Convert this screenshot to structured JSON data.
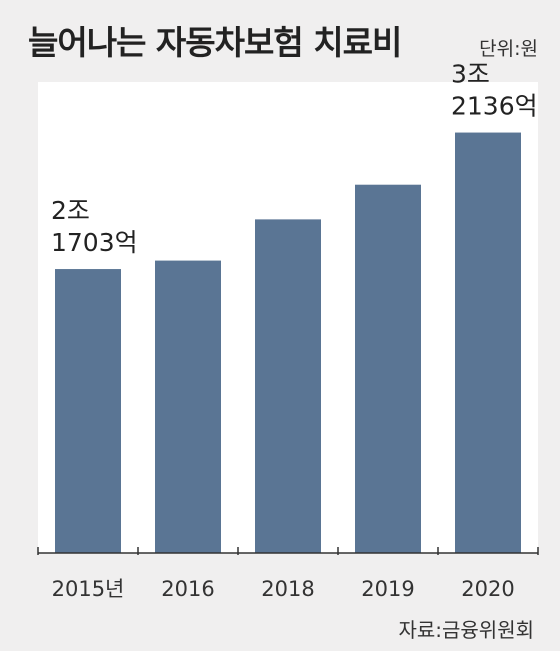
{
  "header": {
    "title": "늘어나는 자동차보험 치료비",
    "unit": "단위:원"
  },
  "footer": {
    "source": "자료:금융위원회"
  },
  "colors": {
    "bar": "#5a7594",
    "plot_background": "#ffffff",
    "page_background": "#f0efef"
  },
  "chart_data": {
    "type": "bar",
    "categories": [
      "2015년",
      "2016",
      "2018",
      "2019",
      "2020"
    ],
    "values": [
      21703,
      22350,
      25500,
      28150,
      32136
    ],
    "value_unit": "억원",
    "ylim": [
      0,
      36000
    ],
    "grid": false,
    "annotations": [
      {
        "category": "2015년",
        "lines": [
          "2조",
          "1703억"
        ]
      },
      {
        "category": "2020",
        "lines": [
          "3조",
          "2136억"
        ]
      }
    ]
  }
}
